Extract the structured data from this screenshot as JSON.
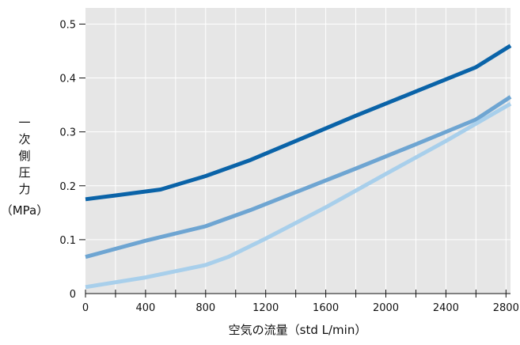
{
  "chart_data": {
    "type": "line",
    "title": "",
    "xlabel": "空気の流量（std L/min）",
    "ylabel": "一次側圧力（MPa）",
    "ylabel_chars": [
      "一",
      "次",
      "側",
      "圧",
      "力"
    ],
    "ylabel_unit": "（MPa）",
    "xlim": [
      0,
      2830
    ],
    "ylim": [
      0,
      0.53
    ],
    "x_ticks": [
      0,
      400,
      800,
      1200,
      1600,
      2000,
      2400,
      2800
    ],
    "x_minor_ticks": [
      200,
      600,
      1000,
      1400,
      1800,
      2200,
      2600
    ],
    "y_ticks": [
      0,
      0.1,
      0.2,
      0.3,
      0.4,
      0.5
    ],
    "y_tick_labels": [
      "0",
      "0.1",
      "0.2",
      "0.3",
      "0.4",
      "0.5"
    ],
    "grid": true,
    "legend": "none",
    "series": [
      {
        "color": "#0a63a8",
        "x": [
          0,
          200,
          500,
          800,
          1100,
          1400,
          1800,
          2200,
          2600,
          2830
        ],
        "y": [
          0.175,
          0.182,
          0.193,
          0.218,
          0.248,
          0.283,
          0.33,
          0.375,
          0.42,
          0.46
        ]
      },
      {
        "color": "#6ea5d2",
        "x": [
          0,
          400,
          800,
          1100,
          1400,
          1800,
          2200,
          2600,
          2830
        ],
        "y": [
          0.068,
          0.098,
          0.125,
          0.155,
          0.188,
          0.232,
          0.277,
          0.323,
          0.365
        ]
      },
      {
        "color": "#a8cfeb",
        "x": [
          0,
          400,
          800,
          950,
          1200,
          1600,
          2000,
          2400,
          2830
        ],
        "y": [
          0.012,
          0.03,
          0.053,
          0.068,
          0.102,
          0.16,
          0.222,
          0.283,
          0.352
        ]
      }
    ]
  },
  "style": {
    "plot_bg": "#e6e6e6",
    "grid_color": "#ffffff",
    "axis_color": "#111111"
  }
}
